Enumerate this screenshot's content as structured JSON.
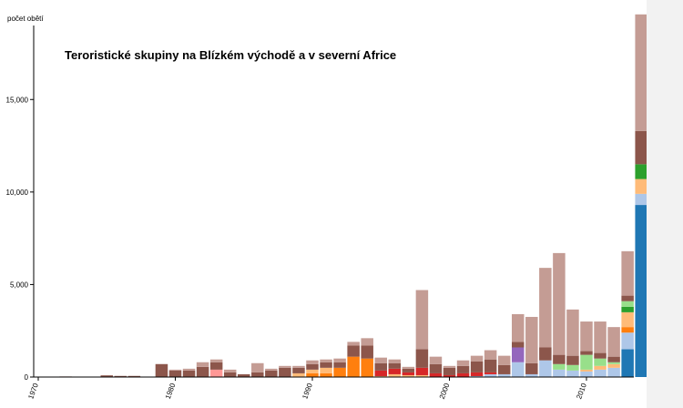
{
  "chart_data": {
    "type": "bar",
    "stacked": true,
    "title": "Teroristické skupiny na Blízkém východě a v severní Africe",
    "ylabel": "počet obětí",
    "xlabel": "",
    "ylim": [
      0,
      19000
    ],
    "xlim": [
      1970,
      2015
    ],
    "yticks": [
      0,
      5000,
      10000,
      15000
    ],
    "ytick_labels": [
      "0",
      "5,000",
      "10,000",
      "15,000"
    ],
    "xticks": [
      1970,
      1980,
      1990,
      2000,
      2010
    ],
    "xtick_labels": [
      "1970",
      "1980",
      "1990",
      "2000",
      "2010"
    ],
    "grid": false,
    "legend": "none",
    "x": [
      1970,
      1971,
      1972,
      1973,
      1974,
      1975,
      1976,
      1977,
      1978,
      1979,
      1980,
      1981,
      1982,
      1983,
      1984,
      1985,
      1986,
      1987,
      1988,
      1989,
      1990,
      1991,
      1992,
      1993,
      1994,
      1995,
      1996,
      1997,
      1998,
      1999,
      2000,
      2001,
      2002,
      2003,
      2004,
      2005,
      2006,
      2007,
      2008,
      2009,
      2010,
      2011,
      2012,
      2013,
      2014
    ],
    "series": [
      {
        "color": "#1f77b4",
        "values": [
          0,
          0,
          0,
          0,
          0,
          0,
          0,
          0,
          0,
          0,
          0,
          0,
          0,
          0,
          0,
          0,
          0,
          0,
          0,
          0,
          0,
          0,
          0,
          0,
          0,
          0,
          0,
          0,
          0,
          0,
          0,
          0,
          0,
          0,
          0,
          0,
          0,
          0,
          0,
          0,
          0,
          0,
          0,
          1500,
          9300
        ]
      },
      {
        "color": "#aec7e8",
        "values": [
          0,
          0,
          0,
          0,
          0,
          0,
          0,
          0,
          0,
          0,
          0,
          0,
          0,
          0,
          0,
          0,
          0,
          0,
          0,
          0,
          0,
          0,
          0,
          0,
          0,
          0,
          0,
          0,
          0,
          0,
          0,
          0,
          50,
          150,
          150,
          800,
          150,
          900,
          400,
          350,
          300,
          400,
          500,
          900,
          600
        ]
      },
      {
        "color": "#ff7f0e",
        "values": [
          0,
          0,
          0,
          0,
          0,
          0,
          0,
          0,
          0,
          0,
          0,
          0,
          0,
          0,
          0,
          0,
          0,
          0,
          0,
          0,
          200,
          200,
          500,
          1100,
          1000,
          0,
          0,
          0,
          0,
          0,
          0,
          0,
          0,
          0,
          0,
          0,
          0,
          0,
          0,
          0,
          0,
          0,
          0,
          300,
          0
        ]
      },
      {
        "color": "#ffbb78",
        "values": [
          0,
          0,
          0,
          0,
          0,
          0,
          0,
          0,
          0,
          0,
          0,
          0,
          0,
          0,
          0,
          0,
          0,
          0,
          0,
          200,
          200,
          300,
          0,
          0,
          0,
          50,
          150,
          100,
          100,
          0,
          0,
          0,
          0,
          0,
          0,
          0,
          0,
          0,
          0,
          0,
          100,
          200,
          200,
          800,
          800
        ]
      },
      {
        "color": "#2ca02c",
        "values": [
          0,
          0,
          0,
          0,
          0,
          0,
          0,
          0,
          0,
          0,
          0,
          0,
          0,
          0,
          0,
          0,
          0,
          0,
          0,
          0,
          0,
          0,
          0,
          0,
          0,
          0,
          0,
          0,
          0,
          0,
          0,
          0,
          0,
          0,
          0,
          0,
          0,
          0,
          0,
          0,
          0,
          0,
          0,
          300,
          800
        ]
      },
      {
        "color": "#98df8a",
        "values": [
          0,
          0,
          0,
          0,
          0,
          0,
          0,
          0,
          0,
          0,
          0,
          0,
          0,
          0,
          0,
          0,
          0,
          0,
          0,
          0,
          0,
          0,
          0,
          0,
          0,
          0,
          0,
          0,
          0,
          0,
          0,
          0,
          0,
          0,
          0,
          0,
          0,
          0,
          300,
          300,
          800,
          400,
          100,
          300,
          0
        ]
      },
      {
        "color": "#d62728",
        "values": [
          0,
          0,
          0,
          0,
          0,
          0,
          0,
          0,
          0,
          0,
          0,
          0,
          0,
          0,
          0,
          0,
          0,
          0,
          0,
          0,
          0,
          0,
          0,
          0,
          0,
          300,
          300,
          150,
          400,
          200,
          100,
          200,
          200,
          100,
          0,
          0,
          0,
          0,
          0,
          0,
          0,
          0,
          0,
          0,
          0
        ]
      },
      {
        "color": "#ff9896",
        "values": [
          0,
          0,
          0,
          0,
          0,
          0,
          0,
          0,
          0,
          0,
          0,
          0,
          0,
          0,
          0,
          0,
          0,
          0,
          0,
          0,
          0,
          0,
          0,
          0,
          0,
          0,
          0,
          0,
          0,
          0,
          0,
          0,
          0,
          0,
          0,
          0,
          0,
          0,
          0,
          0,
          0,
          0,
          0,
          0,
          0
        ]
      },
      {
        "color": "#9467bd",
        "values": [
          0,
          0,
          0,
          0,
          0,
          0,
          0,
          0,
          0,
          0,
          0,
          0,
          0,
          0,
          0,
          0,
          0,
          0,
          0,
          0,
          0,
          0,
          0,
          0,
          0,
          0,
          0,
          0,
          0,
          0,
          0,
          0,
          0,
          0,
          0,
          800,
          0,
          0,
          0,
          0,
          0,
          0,
          0,
          0,
          0
        ]
      },
      {
        "color": "#ff9896",
        "values": [
          0,
          0,
          0,
          0,
          0,
          0,
          0,
          0,
          0,
          0,
          0,
          0,
          0,
          400,
          0,
          0,
          0,
          0,
          0,
          0,
          0,
          0,
          0,
          0,
          0,
          0,
          0,
          0,
          0,
          0,
          0,
          0,
          0,
          0,
          0,
          0,
          0,
          0,
          0,
          0,
          0,
          0,
          0,
          0,
          0
        ]
      },
      {
        "color": "#8c564b",
        "values": [
          0,
          0,
          30,
          0,
          0,
          90,
          60,
          60,
          0,
          700,
          350,
          350,
          550,
          400,
          250,
          150,
          250,
          350,
          500,
          300,
          300,
          300,
          300,
          600,
          700,
          400,
          300,
          200,
          1000,
          500,
          400,
          400,
          600,
          700,
          500,
          300,
          600,
          700,
          500,
          500,
          200,
          300,
          300,
          300,
          1800
        ]
      },
      {
        "color": "#c49c94",
        "values": [
          0,
          0,
          0,
          0,
          0,
          0,
          0,
          0,
          0,
          0,
          50,
          100,
          250,
          150,
          150,
          0,
          500,
          100,
          100,
          100,
          200,
          150,
          200,
          200,
          400,
          300,
          200,
          100,
          3200,
          400,
          100,
          300,
          300,
          500,
          500,
          1500,
          2500,
          4300,
          5500,
          2500,
          1600,
          1700,
          1600,
          2400,
          6300
        ]
      }
    ]
  }
}
